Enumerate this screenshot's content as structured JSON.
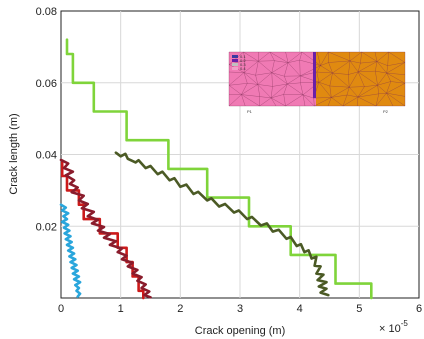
{
  "chart_data": {
    "type": "line",
    "xlabel": "Crack opening (m)",
    "ylabel": "Crack length (m)",
    "x_multiplier": "× 10",
    "x_multiplier_exp": "-5",
    "xlim": [
      0,
      6
    ],
    "ylim": [
      0,
      0.08
    ],
    "x_ticks": [
      "0",
      "1",
      "2",
      "3",
      "4",
      "5",
      "6"
    ],
    "y_ticks": [
      "0.02",
      "0.04",
      "0.06",
      "0.08"
    ],
    "grid": true,
    "legend": "none",
    "series": [
      {
        "color": "#7fd43a",
        "style": "step",
        "points": [
          [
            0.1,
            0.072
          ],
          [
            0.1,
            0.068
          ],
          [
            0.2,
            0.068
          ],
          [
            0.2,
            0.06
          ],
          [
            0.55,
            0.06
          ],
          [
            0.55,
            0.052
          ],
          [
            1.1,
            0.052
          ],
          [
            1.1,
            0.044
          ],
          [
            1.8,
            0.044
          ],
          [
            1.8,
            0.036
          ],
          [
            2.45,
            0.036
          ],
          [
            2.45,
            0.028
          ],
          [
            3.15,
            0.028
          ],
          [
            3.15,
            0.02
          ],
          [
            3.85,
            0.02
          ],
          [
            3.85,
            0.012
          ],
          [
            4.6,
            0.012
          ],
          [
            4.6,
            0.004
          ],
          [
            5.2,
            0.004
          ],
          [
            5.2,
            0.0
          ]
        ]
      },
      {
        "color": "#4b5a25",
        "style": "line",
        "points": [
          [
            0.92,
            0.0405
          ],
          [
            1.0,
            0.0395
          ],
          [
            1.08,
            0.0402
          ],
          [
            1.12,
            0.0388
          ],
          [
            1.25,
            0.0378
          ],
          [
            1.3,
            0.0384
          ],
          [
            1.42,
            0.0362
          ],
          [
            1.5,
            0.0368
          ],
          [
            1.62,
            0.0345
          ],
          [
            1.7,
            0.0352
          ],
          [
            1.82,
            0.0328
          ],
          [
            1.9,
            0.0334
          ],
          [
            2.0,
            0.031
          ],
          [
            2.1,
            0.0316
          ],
          [
            2.22,
            0.029
          ],
          [
            2.3,
            0.0296
          ],
          [
            2.45,
            0.0272
          ],
          [
            2.52,
            0.0278
          ],
          [
            2.65,
            0.0255
          ],
          [
            2.75,
            0.0262
          ],
          [
            2.9,
            0.0238
          ],
          [
            2.98,
            0.0244
          ],
          [
            3.12,
            0.022
          ],
          [
            3.2,
            0.0226
          ],
          [
            3.35,
            0.0202
          ],
          [
            3.45,
            0.0208
          ],
          [
            3.55,
            0.0185
          ],
          [
            3.65,
            0.019
          ],
          [
            3.78,
            0.0165
          ],
          [
            3.85,
            0.017
          ],
          [
            3.95,
            0.0145
          ],
          [
            4.02,
            0.015
          ],
          [
            4.08,
            0.0128
          ],
          [
            4.15,
            0.0133
          ],
          [
            4.2,
            0.011
          ],
          [
            4.28,
            0.0115
          ],
          [
            4.25,
            0.009
          ],
          [
            4.35,
            0.0088
          ],
          [
            4.28,
            0.0068
          ],
          [
            4.4,
            0.0065
          ],
          [
            4.3,
            0.005
          ],
          [
            4.45,
            0.0044
          ],
          [
            4.32,
            0.0032
          ],
          [
            4.45,
            0.0026
          ],
          [
            4.35,
            0.0015
          ],
          [
            4.48,
            0.0008
          ]
        ]
      },
      {
        "color": "#cc1a1a",
        "style": "step",
        "points": [
          [
            0.02,
            0.038
          ],
          [
            0.02,
            0.034
          ],
          [
            0.1,
            0.034
          ],
          [
            0.1,
            0.03
          ],
          [
            0.3,
            0.03
          ],
          [
            0.3,
            0.026
          ],
          [
            0.38,
            0.026
          ],
          [
            0.38,
            0.022
          ],
          [
            0.65,
            0.022
          ],
          [
            0.65,
            0.018
          ],
          [
            0.95,
            0.018
          ],
          [
            0.95,
            0.014
          ],
          [
            1.1,
            0.014
          ],
          [
            1.1,
            0.01
          ],
          [
            1.2,
            0.01
          ],
          [
            1.2,
            0.006
          ],
          [
            1.3,
            0.006
          ],
          [
            1.3,
            0.002
          ],
          [
            1.38,
            0.002
          ],
          [
            1.38,
            0.0
          ]
        ]
      },
      {
        "color": "#8a1c2c",
        "style": "line",
        "points": [
          [
            0.0,
            0.0385
          ],
          [
            0.12,
            0.0375
          ],
          [
            0.05,
            0.0362
          ],
          [
            0.2,
            0.0352
          ],
          [
            0.08,
            0.0342
          ],
          [
            0.22,
            0.0328
          ],
          [
            0.15,
            0.0318
          ],
          [
            0.28,
            0.0308
          ],
          [
            0.18,
            0.0295
          ],
          [
            0.38,
            0.0285
          ],
          [
            0.3,
            0.0272
          ],
          [
            0.45,
            0.0262
          ],
          [
            0.35,
            0.025
          ],
          [
            0.55,
            0.024
          ],
          [
            0.45,
            0.0228
          ],
          [
            0.62,
            0.0218
          ],
          [
            0.52,
            0.0208
          ],
          [
            0.72,
            0.0198
          ],
          [
            0.62,
            0.0188
          ],
          [
            0.82,
            0.0178
          ],
          [
            0.72,
            0.0168
          ],
          [
            0.92,
            0.0158
          ],
          [
            0.82,
            0.0148
          ],
          [
            1.02,
            0.0138
          ],
          [
            0.95,
            0.0128
          ],
          [
            1.1,
            0.0118
          ],
          [
            1.02,
            0.0108
          ],
          [
            1.2,
            0.0098
          ],
          [
            1.12,
            0.0088
          ],
          [
            1.28,
            0.0078
          ],
          [
            1.2,
            0.0068
          ],
          [
            1.35,
            0.0058
          ],
          [
            1.28,
            0.0048
          ],
          [
            1.42,
            0.0038
          ],
          [
            1.35,
            0.0028
          ],
          [
            1.48,
            0.0018
          ],
          [
            1.4,
            0.0008
          ],
          [
            1.5,
            0.0002
          ]
        ]
      },
      {
        "color": "#2aa6dc",
        "style": "line",
        "points": [
          [
            0.0,
            0.026
          ],
          [
            0.08,
            0.0252
          ],
          [
            0.02,
            0.0244
          ],
          [
            0.12,
            0.0236
          ],
          [
            0.04,
            0.0228
          ],
          [
            0.1,
            0.022
          ],
          [
            0.02,
            0.0212
          ],
          [
            0.12,
            0.0204
          ],
          [
            0.05,
            0.0196
          ],
          [
            0.14,
            0.0188
          ],
          [
            0.06,
            0.018
          ],
          [
            0.16,
            0.0172
          ],
          [
            0.08,
            0.0164
          ],
          [
            0.18,
            0.0156
          ],
          [
            0.1,
            0.0148
          ],
          [
            0.2,
            0.014
          ],
          [
            0.12,
            0.0132
          ],
          [
            0.22,
            0.0124
          ],
          [
            0.14,
            0.0116
          ],
          [
            0.24,
            0.0108
          ],
          [
            0.16,
            0.01
          ],
          [
            0.26,
            0.0092
          ],
          [
            0.18,
            0.0084
          ],
          [
            0.28,
            0.0076
          ],
          [
            0.2,
            0.0068
          ],
          [
            0.3,
            0.006
          ],
          [
            0.22,
            0.0052
          ],
          [
            0.32,
            0.0044
          ],
          [
            0.24,
            0.0036
          ],
          [
            0.3,
            0.0028
          ],
          [
            0.26,
            0.002
          ],
          [
            0.32,
            0.0012
          ],
          [
            0.28,
            0.0004
          ]
        ]
      }
    ],
    "inset": {
      "left_color": "#f07ab4",
      "right_color": "#e08a10",
      "crack_color": "#6a1fa6",
      "mesh_color": "#7a2a50",
      "legend_colors": [
        "#3a3aa0",
        "#6a1fa6",
        "#c0c0c0",
        "#f0a0c8"
      ],
      "legend_texts": [
        "0.1",
        "0.2",
        "0.3",
        "0.4"
      ],
      "left_label": "P1",
      "right_label": "P2"
    }
  }
}
